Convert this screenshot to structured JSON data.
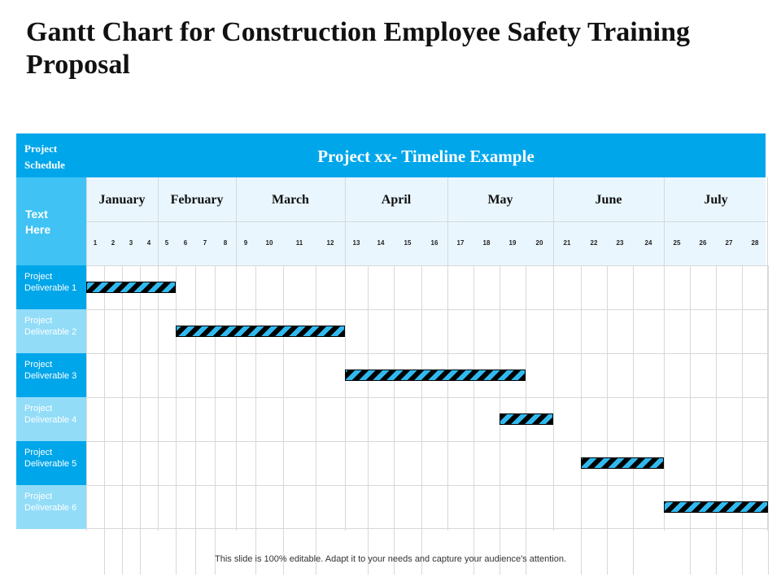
{
  "title": "Gantt Chart for Construction Employee Safety Training Proposal",
  "header": {
    "schedule_label": "Project Schedule",
    "timeline_title": "Project xx- Timeline Example",
    "side_label": "Text Here"
  },
  "months": [
    "January",
    "February",
    "March",
    "April",
    "May",
    "June",
    "July"
  ],
  "weeks": [
    "1",
    "2",
    "3",
    "4",
    "5",
    "6",
    "7",
    "8",
    "9",
    "10",
    "11",
    "12",
    "13",
    "14",
    "15",
    "16",
    "17",
    "18",
    "19",
    "20",
    "21",
    "22",
    "23",
    "24",
    "25",
    "26",
    "27",
    "28"
  ],
  "deliverables": [
    {
      "label": "Project Deliverable 1",
      "start_week": 1,
      "end_week": 5
    },
    {
      "label": "Project Deliverable 2",
      "start_week": 6,
      "end_week": 12
    },
    {
      "label": "Project Deliverable 3",
      "start_week": 13,
      "end_week": 19
    },
    {
      "label": "Project Deliverable 4",
      "start_week": 19,
      "end_week": 20
    },
    {
      "label": "Project Deliverable 5",
      "start_week": 22,
      "end_week": 24
    },
    {
      "label": "Project Deliverable 6",
      "start_week": 25,
      "end_week": 28
    }
  ],
  "footer": "This slide is 100% editable. Adapt it to your needs and capture your audience's attention.",
  "colors": {
    "header_blue": "#00a6ea",
    "row_light_blue": "#92dcf8",
    "month_bg": "#e9f6fe",
    "bar_stripe_a": "#000000",
    "bar_stripe_b": "#2fb9ee"
  }
}
